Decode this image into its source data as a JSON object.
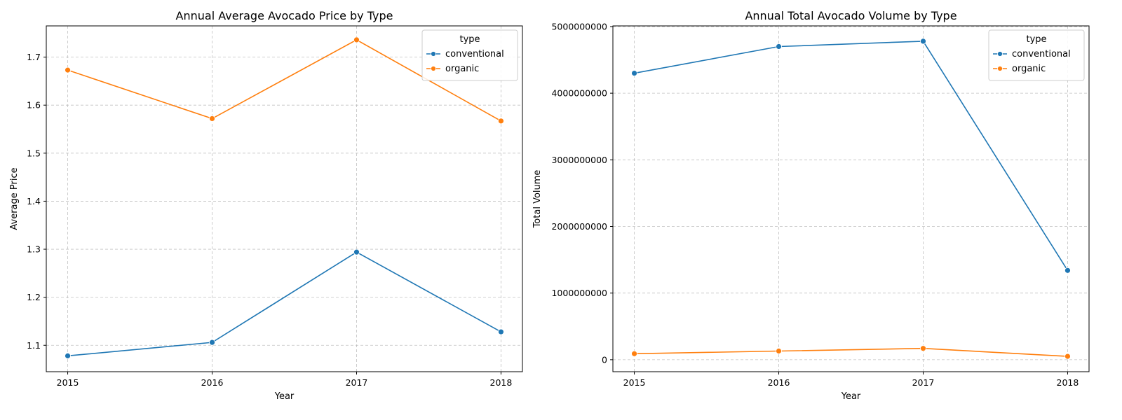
{
  "chart_data": [
    {
      "type": "line",
      "title": "Annual Average Avocado Price by Type",
      "xlabel": "Year",
      "ylabel": "Average Price",
      "categories": [
        "2015",
        "2016",
        "2017",
        "2018"
      ],
      "ylim": [
        1.045,
        1.765
      ],
      "yticks": [
        1.1,
        1.2,
        1.3,
        1.4,
        1.5,
        1.6,
        1.7
      ],
      "ytick_labels": [
        "1.1",
        "1.2",
        "1.3",
        "1.4",
        "1.5",
        "1.6",
        "1.7"
      ],
      "grid": true,
      "legend": {
        "title": "type",
        "position": "top-right"
      },
      "series": [
        {
          "name": "conventional",
          "color": "#1f77b4",
          "values": [
            1.078,
            1.106,
            1.294,
            1.128
          ]
        },
        {
          "name": "organic",
          "color": "#ff7f0e",
          "values": [
            1.673,
            1.572,
            1.736,
            1.567
          ]
        }
      ]
    },
    {
      "type": "line",
      "title": "Annual Total Avocado Volume by Type",
      "xlabel": "Year",
      "ylabel": "Total Volume",
      "categories": [
        "2015",
        "2016",
        "2017",
        "2018"
      ],
      "ylim": [
        -180000000,
        5010000000
      ],
      "yticks": [
        0,
        1000000000,
        2000000000,
        3000000000,
        4000000000,
        5000000000
      ],
      "ytick_labels": [
        "0",
        "1000000000",
        "2000000000",
        "3000000000",
        "4000000000",
        "5000000000"
      ],
      "grid": true,
      "legend": {
        "title": "type",
        "position": "top-right"
      },
      "series": [
        {
          "name": "conventional",
          "color": "#1f77b4",
          "values": [
            4300000000,
            4700000000,
            4780000000,
            1340000000
          ]
        },
        {
          "name": "organic",
          "color": "#ff7f0e",
          "values": [
            90000000,
            130000000,
            170000000,
            50000000
          ]
        }
      ]
    }
  ]
}
